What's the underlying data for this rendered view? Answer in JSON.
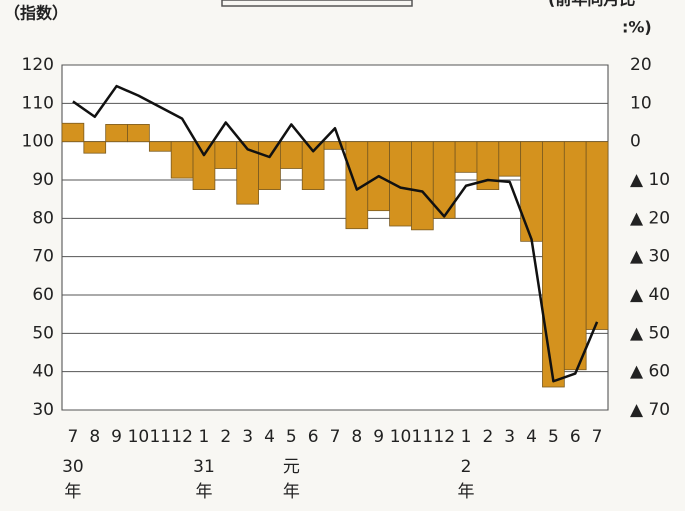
{
  "chart_data": {
    "type": "bar_line",
    "y_label": "（指数）",
    "y2_label": "(前年同月比",
    "y2_unit": ":%)",
    "categories": [
      "7",
      "8",
      "9",
      "10",
      "11",
      "12",
      "1",
      "2",
      "3",
      "4",
      "5",
      "6",
      "7",
      "8",
      "9",
      "10",
      "11",
      "12",
      "1",
      "2",
      "3",
      "4",
      "5",
      "6",
      "7"
    ],
    "year_labels": [
      "30年",
      null,
      null,
      null,
      null,
      null,
      "31年",
      null,
      null,
      null,
      "元年",
      null,
      null,
      null,
      null,
      null,
      null,
      null,
      "2年",
      null,
      null,
      null,
      null,
      null,
      null
    ],
    "series": [
      {
        "kind": "bar",
        "axis": "y2",
        "color": "#d4921e",
        "values": [
          4.8,
          -3,
          4.5,
          4.5,
          -2.5,
          -9.5,
          -12.5,
          -7,
          -16.3,
          -12.5,
          -7,
          -12.5,
          -2,
          -22.7,
          -18,
          -22,
          -23,
          -20,
          -8,
          -12.5,
          -9,
          -26,
          -64,
          -59.5,
          -49
        ]
      },
      {
        "kind": "line",
        "axis": "y",
        "color": "#111111",
        "values": [
          110.5,
          106.5,
          114.5,
          112,
          109,
          106,
          96.5,
          105,
          98,
          96,
          104.5,
          97.5,
          103.5,
          87.5,
          91,
          88,
          87,
          80.5,
          88.5,
          90,
          89.5,
          74.5,
          37.5,
          39.5,
          53
        ]
      }
    ],
    "ylim": [
      30,
      120
    ],
    "yticks": [
      30,
      40,
      50,
      60,
      70,
      80,
      90,
      100,
      110,
      120
    ],
    "y2lim": [
      -70,
      20
    ],
    "y2ticks": [
      20,
      10,
      0,
      {
        "value": -10,
        "label": "▲ 10"
      },
      {
        "value": -20,
        "label": "▲ 20"
      },
      {
        "value": -30,
        "label": "▲ 30"
      },
      {
        "value": -40,
        "label": "▲ 40"
      },
      {
        "value": -50,
        "label": "▲ 50"
      },
      {
        "value": -60,
        "label": "▲ 60"
      },
      {
        "value": -70,
        "label": "▲ 70"
      }
    ],
    "grid": true
  }
}
